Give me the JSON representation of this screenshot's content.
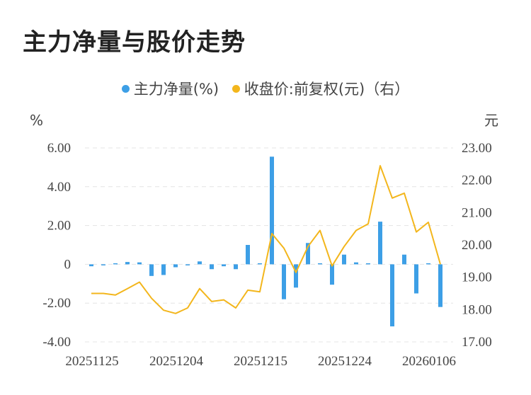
{
  "title": "主力净量与股价走势",
  "colors": {
    "bar": "#3d9fe6",
    "line": "#f3b61c",
    "grid": "#e4e4e4"
  },
  "chart_data": {
    "type": "bar+line",
    "legend": [
      "主力净量(%)",
      "收盘价:前复权(元)（右）"
    ],
    "legend_placement": "top-center",
    "left_unit": "%",
    "right_unit": "元",
    "yleft_ticks": [
      "6.00",
      "4.00",
      "2.00",
      "0",
      "-2.00",
      "-4.00"
    ],
    "yright_ticks": [
      "23.00",
      "22.00",
      "21.00",
      "20.00",
      "19.00",
      "18.00",
      "17.00"
    ],
    "yleft_range": [
      -4,
      6
    ],
    "yright_range": [
      17,
      23
    ],
    "x_tick_labels": [
      "20251125",
      "20251204",
      "20251215",
      "20251224",
      "20260106"
    ],
    "x_tick_index": [
      0,
      7,
      14,
      21,
      28
    ],
    "grid": true,
    "series": [
      {
        "name": "主力净量(%)",
        "type": "bar",
        "values": [
          -0.1,
          -0.05,
          0.02,
          0.12,
          0.1,
          -0.6,
          -0.55,
          -0.15,
          -0.05,
          0.15,
          -0.25,
          -0.1,
          -0.25,
          1.0,
          0.05,
          5.55,
          -1.8,
          -1.2,
          1.1,
          0.02,
          -1.05,
          0.5,
          0.1,
          0.03,
          2.2,
          -3.2,
          0.5,
          -1.5,
          0.03,
          -2.2
        ]
      },
      {
        "name": "收盘价:前复权(元)（右）",
        "type": "line",
        "values": [
          18.5,
          18.5,
          18.45,
          18.65,
          18.85,
          18.35,
          17.98,
          17.88,
          18.05,
          18.65,
          18.25,
          18.3,
          18.05,
          18.6,
          18.55,
          20.35,
          19.9,
          19.15,
          19.95,
          20.45,
          19.35,
          19.95,
          20.45,
          20.65,
          22.45,
          21.45,
          21.6,
          20.4,
          20.7,
          19.4
        ]
      }
    ]
  }
}
